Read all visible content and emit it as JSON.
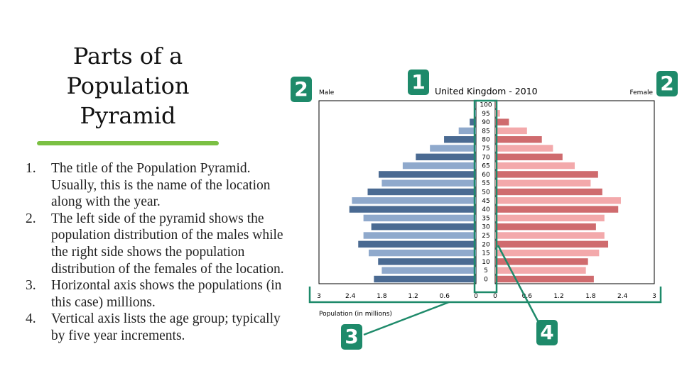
{
  "slide": {
    "title_lines": [
      "Parts of a",
      "Population",
      "Pyramid"
    ],
    "points": [
      {
        "num": "1.",
        "text": "The title of the Population Pyramid. Usually, this is the name of the location along with the year."
      },
      {
        "num": "2.",
        "text": "The left side of the pyramid shows the population distribution of the males while the right side shows the population distribution of the females of the location."
      },
      {
        "num": "3.",
        "text": "Horizontal axis shows the populations (in this case) millions."
      },
      {
        "num": "4.",
        "text": "Vertical axis lists the age group; typically by five year increments."
      }
    ],
    "underline_color": "#7bc043"
  },
  "badges": {
    "title": "1",
    "sides_left": "2",
    "sides_right": "2",
    "horizontal_axis": "3",
    "vertical_axis": "4",
    "color": "#1e8a6a"
  },
  "chart_data": {
    "type": "bar",
    "title": "United Kingdom - 2010",
    "left_label": "Male",
    "right_label": "Female",
    "xlabel": "Population (in millions)",
    "xlim": [
      0,
      3
    ],
    "x_ticks_left": [
      "3",
      "2.4",
      "1.8",
      "1.2",
      "0.6",
      "0"
    ],
    "x_ticks_right": [
      "0",
      "0.6",
      "1.2",
      "1.8",
      "2.4",
      "3"
    ],
    "x_tick_values": [
      3,
      2.4,
      1.8,
      1.2,
      0.6,
      0
    ],
    "age_groups": [
      "0",
      "5",
      "10",
      "15",
      "20",
      "25",
      "30",
      "35",
      "40",
      "45",
      "50",
      "55",
      "60",
      "65",
      "70",
      "75",
      "80",
      "85",
      "90",
      "95",
      "100"
    ],
    "male": [
      1.95,
      1.8,
      1.87,
      2.05,
      2.25,
      2.15,
      2.0,
      2.15,
      2.42,
      2.37,
      2.07,
      1.8,
      1.86,
      1.4,
      1.15,
      0.88,
      0.61,
      0.33,
      0.12,
      0.03,
      0.005
    ],
    "female": [
      1.86,
      1.71,
      1.75,
      1.96,
      2.13,
      2.06,
      1.9,
      2.06,
      2.32,
      2.37,
      2.02,
      1.8,
      1.94,
      1.5,
      1.27,
      1.09,
      0.88,
      0.6,
      0.26,
      0.09,
      0.01
    ],
    "colors": {
      "male_dark": "#4a6a92",
      "male_light": "#8fa9cc",
      "female_dark": "#cf6b6e",
      "female_light": "#f3a9ab",
      "axes": "#000000",
      "annotation": "#1e8a6a"
    }
  }
}
